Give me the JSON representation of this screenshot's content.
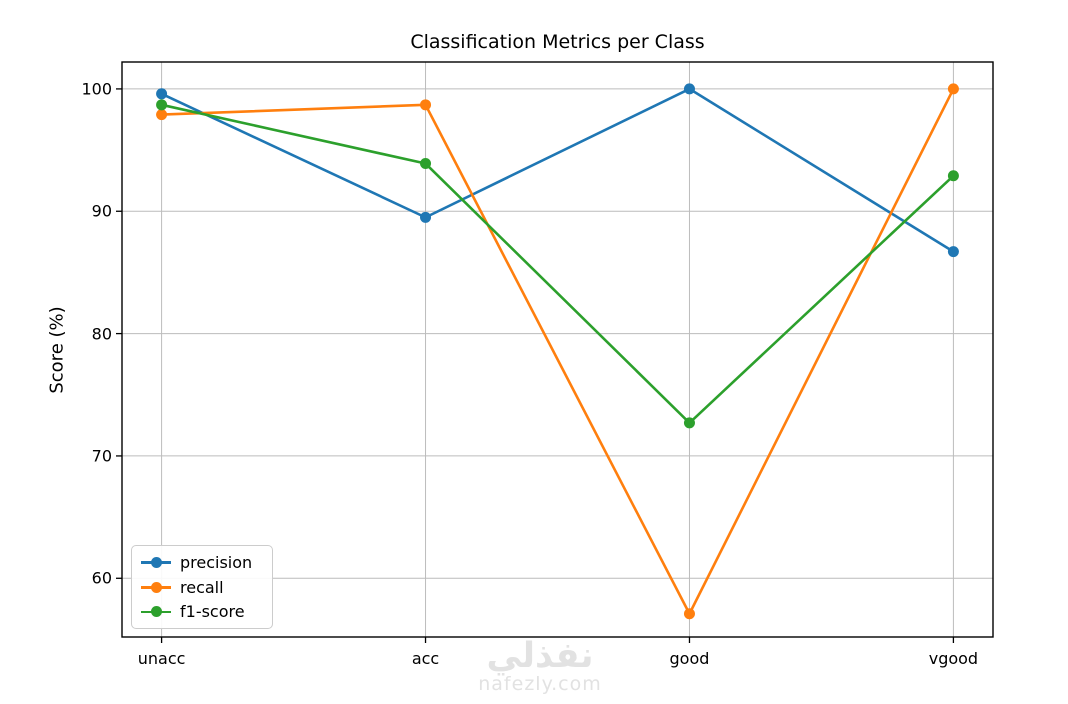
{
  "chart_data": {
    "type": "line",
    "title": "Classification Metrics per Class",
    "xlabel": "",
    "ylabel": "Score (%)",
    "categories": [
      "unacc",
      "acc",
      "good",
      "vgood"
    ],
    "series": [
      {
        "name": "precision",
        "color": "#1f77b4",
        "values": [
          99.6,
          89.5,
          100.0,
          86.7
        ]
      },
      {
        "name": "recall",
        "color": "#ff7f0e",
        "values": [
          97.9,
          98.7,
          57.1,
          100.0
        ]
      },
      {
        "name": "f1-score",
        "color": "#2ca02c",
        "values": [
          98.7,
          93.9,
          72.7,
          92.9
        ]
      }
    ],
    "yticks": [
      100,
      90,
      80,
      70,
      60
    ],
    "ylim": [
      55.2,
      102.2
    ],
    "grid": true,
    "legend_position": "lower left",
    "marker": "circle"
  },
  "watermark": {
    "logo_text": "نفذلي",
    "domain": "nafezly.com"
  },
  "colors": {
    "grid": "#bcbcbc",
    "spine": "#000000",
    "legend_border": "#cccccc",
    "watermark": "#e2e2e2"
  }
}
